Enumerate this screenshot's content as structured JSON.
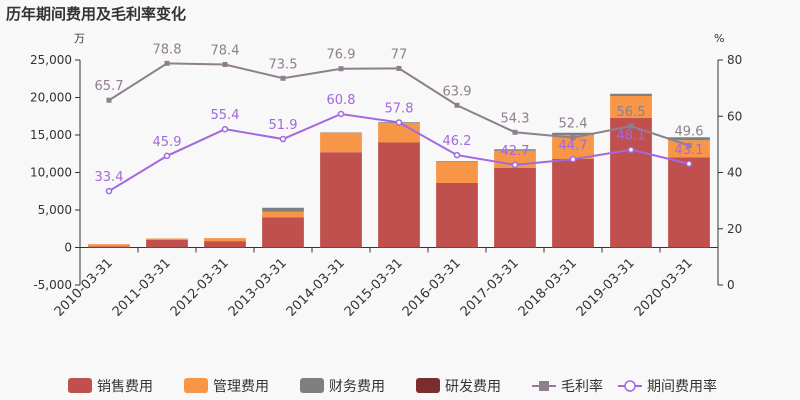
{
  "chart_data": {
    "type": "bar",
    "title": "历年期间费用及毛利率变化",
    "left_unit": "万",
    "right_unit": "%",
    "categories": [
      "2010-03-31",
      "2011-03-31",
      "2012-03-31",
      "2013-03-31",
      "2014-03-31",
      "2015-03-31",
      "2016-03-31",
      "2017-03-31",
      "2018-03-31",
      "2019-03-31",
      "2020-03-31"
    ],
    "left_axis": {
      "min": -5000,
      "max": 25000,
      "ticks": [
        -5000,
        0,
        5000,
        10000,
        15000,
        20000,
        25000
      ],
      "tick_labels": [
        "-5,000",
        "0",
        "5,000",
        "10,000",
        "15,000",
        "20,000",
        "25,000"
      ]
    },
    "right_axis": {
      "min": 0,
      "max": 80,
      "ticks": [
        0,
        20,
        40,
        60,
        80
      ],
      "tick_labels": [
        "0",
        "20",
        "40",
        "60",
        "80"
      ]
    },
    "stacked_series": [
      {
        "name": "销售费用",
        "color": "#c0504d",
        "values": [
          150,
          1000,
          850,
          4000,
          12700,
          14000,
          8600,
          10600,
          11800,
          17300,
          12000
        ]
      },
      {
        "name": "管理费用",
        "color": "#f79646",
        "values": [
          300,
          200,
          400,
          800,
          2600,
          2600,
          2800,
          2300,
          3200,
          2900,
          2300
        ]
      },
      {
        "name": "财务费用",
        "color": "#7f7f7f",
        "values": [
          0,
          0,
          0,
          500,
          50,
          100,
          100,
          200,
          300,
          300,
          400
        ]
      },
      {
        "name": "研发费用",
        "color": "#7b2c2c",
        "values": [
          0,
          0,
          0,
          0,
          0,
          0,
          0,
          0,
          0,
          0,
          0
        ]
      }
    ],
    "line_series": [
      {
        "name": "毛利率",
        "color": "#8e7f8e",
        "marker": "square",
        "values": [
          65.7,
          78.8,
          78.4,
          73.5,
          76.9,
          77,
          63.9,
          54.3,
          52.4,
          56.5,
          49.6
        ],
        "labels": [
          "65.7",
          "78.8",
          "78.4",
          "73.5",
          "76.9",
          "77",
          "63.9",
          "54.3",
          "52.4",
          "56.5",
          "49.6"
        ]
      },
      {
        "name": "期间费用率",
        "color": "#a368e0",
        "marker": "circle",
        "values": [
          33.4,
          45.9,
          55.4,
          51.9,
          60.8,
          57.8,
          46.2,
          42.7,
          44.7,
          48.1,
          43.1
        ],
        "labels": [
          "33.4",
          "45.9",
          "55.4",
          "51.9",
          "60.8",
          "57.8",
          "46.2",
          "42.7",
          "44.7",
          "48.1",
          "43.1"
        ]
      }
    ]
  }
}
